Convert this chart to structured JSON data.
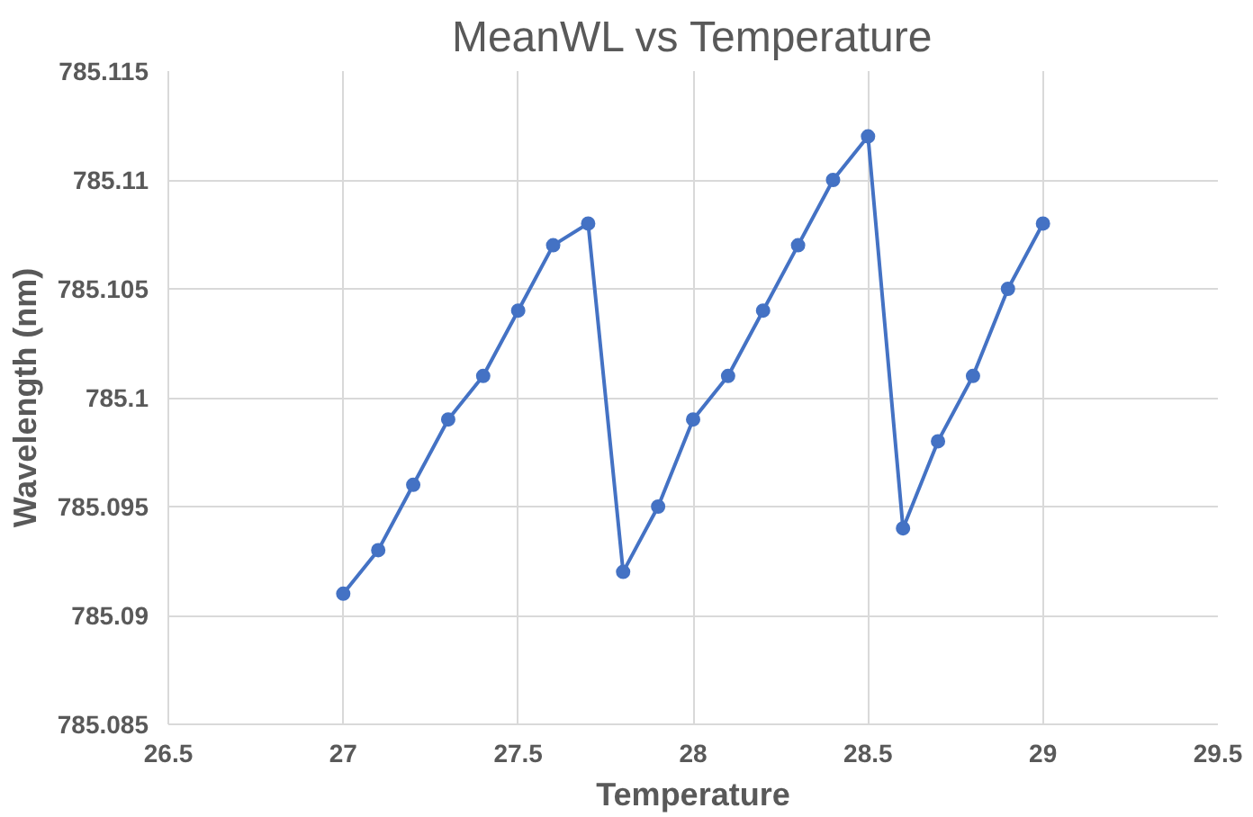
{
  "chart_data": {
    "type": "line",
    "title": "MeanWL vs Temperature",
    "xlabel": "Temperature",
    "ylabel": "Wavelength (nm)",
    "x": [
      27,
      27.1,
      27.2,
      27.3,
      27.4,
      27.5,
      27.6,
      27.7,
      27.8,
      27.9,
      28,
      28.1,
      28.2,
      28.3,
      28.4,
      28.5,
      28.6,
      28.7,
      28.8,
      28.9,
      29
    ],
    "series": [
      {
        "color": "#4472c4",
        "values": [
          785.091,
          785.093,
          785.096,
          785.099,
          785.101,
          785.104,
          785.107,
          785.108,
          785.092,
          785.095,
          785.099,
          785.101,
          785.104,
          785.107,
          785.11,
          785.112,
          785.094,
          785.098,
          785.101,
          785.105,
          785.108
        ]
      }
    ],
    "xlim": [
      26.5,
      29.5
    ],
    "xticks": [
      26.5,
      27,
      27.5,
      28,
      28.5,
      29,
      29.5
    ],
    "ylim": [
      785.085,
      785.115
    ],
    "yticks": [
      785.085,
      785.09,
      785.095,
      785.1,
      785.105,
      785.11,
      785.115
    ],
    "grid": true,
    "marker": "circle",
    "line_style": "solid"
  }
}
